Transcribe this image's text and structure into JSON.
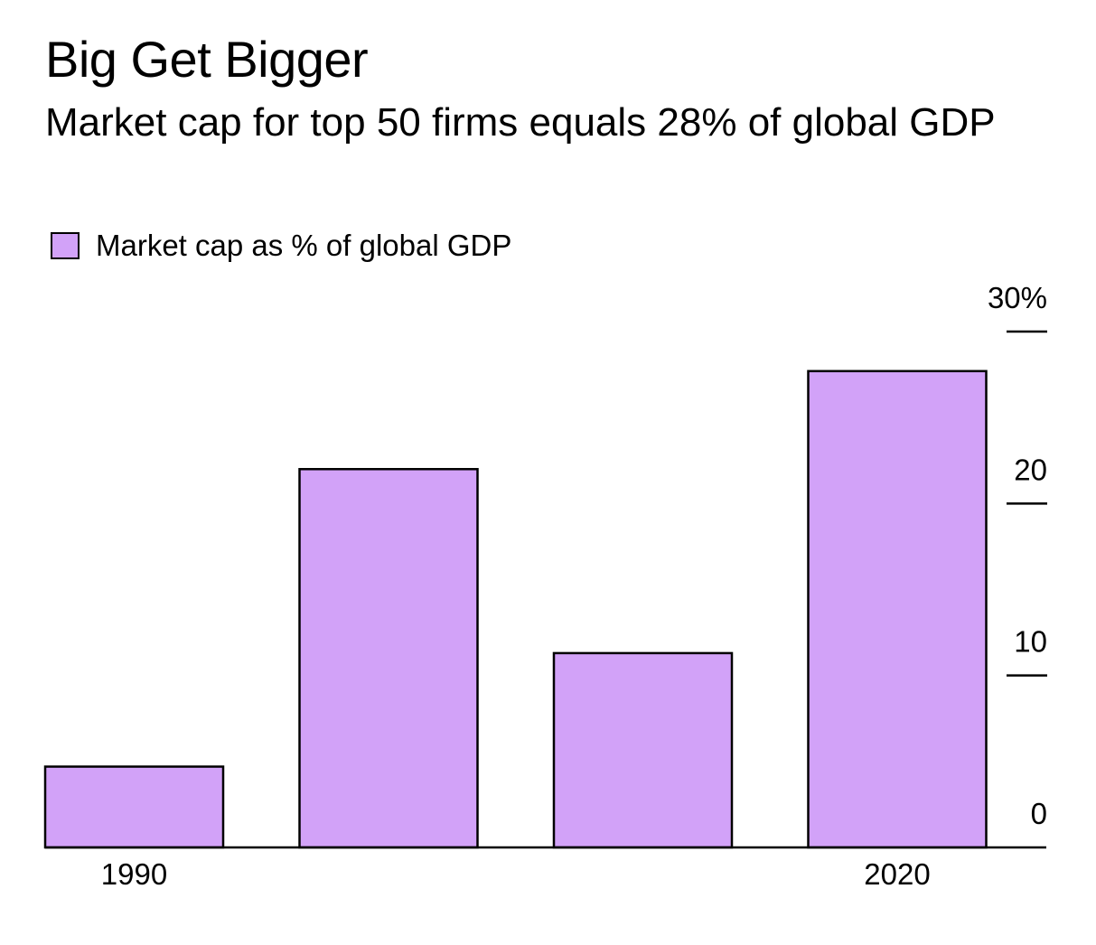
{
  "chart_data": {
    "type": "bar",
    "title": "Big Get Bigger",
    "subtitle": "Market cap for top 50 firms equals 28% of global GDP",
    "legend": [
      {
        "label": "Market cap as % of global GDP",
        "color": "#d2a2f8"
      }
    ],
    "legend_position": "top-left",
    "series": [
      {
        "name": "Market cap as % of global GDP",
        "values": [
          4.7,
          22,
          11.3,
          27.7
        ]
      }
    ],
    "x_tick_labels": [
      "1990",
      "",
      "",
      "2020"
    ],
    "y_ticks": [
      0,
      10,
      20,
      30
    ],
    "y_tick_labels": [
      "0",
      "10",
      "20",
      "30%"
    ],
    "ylim": [
      0,
      30
    ],
    "y_axis_side": "right",
    "grid": false,
    "colors": {
      "bar_fill": "#d2a2f8",
      "bar_stroke": "#000000",
      "axis": "#000000"
    }
  }
}
